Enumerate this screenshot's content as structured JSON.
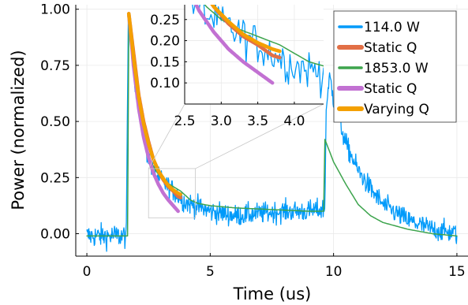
{
  "chart_data": [
    {
      "type": "line",
      "xlabel": "Time (us)",
      "ylabel": "Power (normalized)",
      "xlim": [
        -0.45,
        15.45
      ],
      "ylim": [
        -0.1,
        1.02
      ],
      "xticks": [
        0,
        5,
        10,
        15
      ],
      "xtick_labels": [
        "0",
        "5",
        "10",
        "15"
      ],
      "yticks": [
        0.0,
        0.25,
        0.5,
        0.75,
        1.0
      ],
      "ytick_labels": [
        "0.00",
        "0.25",
        "0.50",
        "0.75",
        "1.00"
      ],
      "grid": true,
      "legend_position": "top-right",
      "series": [
        {
          "name": "114.0 W",
          "color": "#009AFA",
          "noisy": true,
          "points": [
            [
              0.0,
              -0.01
            ],
            [
              1.6,
              -0.01
            ],
            [
              1.68,
              0.98
            ],
            [
              1.8,
              0.85
            ],
            [
              2.0,
              0.63
            ],
            [
              2.2,
              0.5
            ],
            [
              2.4,
              0.38
            ],
            [
              2.6,
              0.3
            ],
            [
              2.8,
              0.26
            ],
            [
              3.0,
              0.24
            ],
            [
              3.2,
              0.22
            ],
            [
              3.4,
              0.2
            ],
            [
              3.6,
              0.18
            ],
            [
              3.8,
              0.16
            ],
            [
              4.0,
              0.14
            ],
            [
              4.5,
              0.12
            ],
            [
              5.0,
              0.1
            ],
            [
              6.0,
              0.08
            ],
            [
              7.0,
              0.09
            ],
            [
              8.0,
              0.1
            ],
            [
              9.0,
              0.1
            ],
            [
              9.65,
              0.11
            ],
            [
              9.7,
              0.55
            ],
            [
              9.85,
              0.7
            ],
            [
              10.0,
              0.6
            ],
            [
              10.5,
              0.4
            ],
            [
              11.0,
              0.28
            ],
            [
              11.5,
              0.2
            ],
            [
              12.0,
              0.13
            ],
            [
              13.0,
              0.06
            ],
            [
              14.0,
              0.02
            ],
            [
              15.0,
              0.0
            ]
          ]
        },
        {
          "name": "Static Q",
          "color": "#E26F46",
          "points": [
            [
              1.7,
              0.98
            ],
            [
              1.9,
              0.8
            ],
            [
              2.1,
              0.62
            ],
            [
              2.3,
              0.5
            ],
            [
              2.5,
              0.41
            ],
            [
              2.7,
              0.33
            ],
            [
              2.9,
              0.28
            ],
            [
              3.1,
              0.24
            ],
            [
              3.3,
              0.21
            ],
            [
              3.5,
              0.19
            ],
            [
              3.7,
              0.165
            ],
            [
              3.8,
              0.16
            ]
          ]
        },
        {
          "name": "1853.0 W",
          "color": "#3DA44D",
          "points": [
            [
              0.0,
              -0.01
            ],
            [
              1.65,
              -0.01
            ],
            [
              1.7,
              0.94
            ],
            [
              1.8,
              0.86
            ],
            [
              2.0,
              0.66
            ],
            [
              2.2,
              0.52
            ],
            [
              2.4,
              0.4
            ],
            [
              2.6,
              0.32
            ],
            [
              2.8,
              0.28
            ],
            [
              3.0,
              0.25
            ],
            [
              3.2,
              0.23
            ],
            [
              3.5,
              0.21
            ],
            [
              3.8,
              0.19
            ],
            [
              4.0,
              0.17
            ],
            [
              4.2,
              0.15
            ],
            [
              4.5,
              0.135
            ],
            [
              5.0,
              0.125
            ],
            [
              6.0,
              0.115
            ],
            [
              7.0,
              0.11
            ],
            [
              8.0,
              0.105
            ],
            [
              9.0,
              0.1
            ],
            [
              9.6,
              0.1
            ],
            [
              9.65,
              0.42
            ],
            [
              10.0,
              0.32
            ],
            [
              10.5,
              0.22
            ],
            [
              11.0,
              0.13
            ],
            [
              11.5,
              0.08
            ],
            [
              12.0,
              0.05
            ],
            [
              13.0,
              0.02
            ],
            [
              14.0,
              0.0
            ],
            [
              15.0,
              -0.01
            ]
          ]
        },
        {
          "name": "Static Q",
          "color": "#C271D2",
          "points": [
            [
              1.7,
              0.98
            ],
            [
              1.9,
              0.74
            ],
            [
              2.1,
              0.56
            ],
            [
              2.3,
              0.43
            ],
            [
              2.5,
              0.34
            ],
            [
              2.7,
              0.27
            ],
            [
              2.9,
              0.22
            ],
            [
              3.1,
              0.18
            ],
            [
              3.3,
              0.15
            ],
            [
              3.5,
              0.125
            ],
            [
              3.7,
              0.1
            ]
          ]
        },
        {
          "name": "Varying Q",
          "color": "#F4A000",
          "points": [
            [
              1.7,
              0.98
            ],
            [
              1.9,
              0.78
            ],
            [
              2.1,
              0.61
            ],
            [
              2.3,
              0.49
            ],
            [
              2.5,
              0.4
            ],
            [
              2.7,
              0.33
            ],
            [
              2.9,
              0.28
            ],
            [
              3.1,
              0.245
            ],
            [
              3.3,
              0.215
            ],
            [
              3.5,
              0.195
            ],
            [
              3.7,
              0.18
            ],
            [
              3.8,
              0.175
            ]
          ]
        }
      ]
    },
    {
      "type": "line",
      "role": "inset",
      "xlim": [
        2.5,
        4.4
      ],
      "ylim": [
        0.05,
        0.285
      ],
      "xticks": [
        2.5,
        3.0,
        3.5,
        4.0
      ],
      "xtick_labels": [
        "2.5",
        "3.0",
        "3.5",
        "4.0"
      ],
      "yticks": [
        0.1,
        0.15,
        0.2,
        0.25
      ],
      "ytick_labels": [
        "0.10",
        "0.15",
        "0.20",
        "0.25"
      ],
      "grid": true,
      "source_region": {
        "x": [
          2.5,
          4.4
        ],
        "y": [
          0.07,
          0.29
        ]
      }
    }
  ]
}
